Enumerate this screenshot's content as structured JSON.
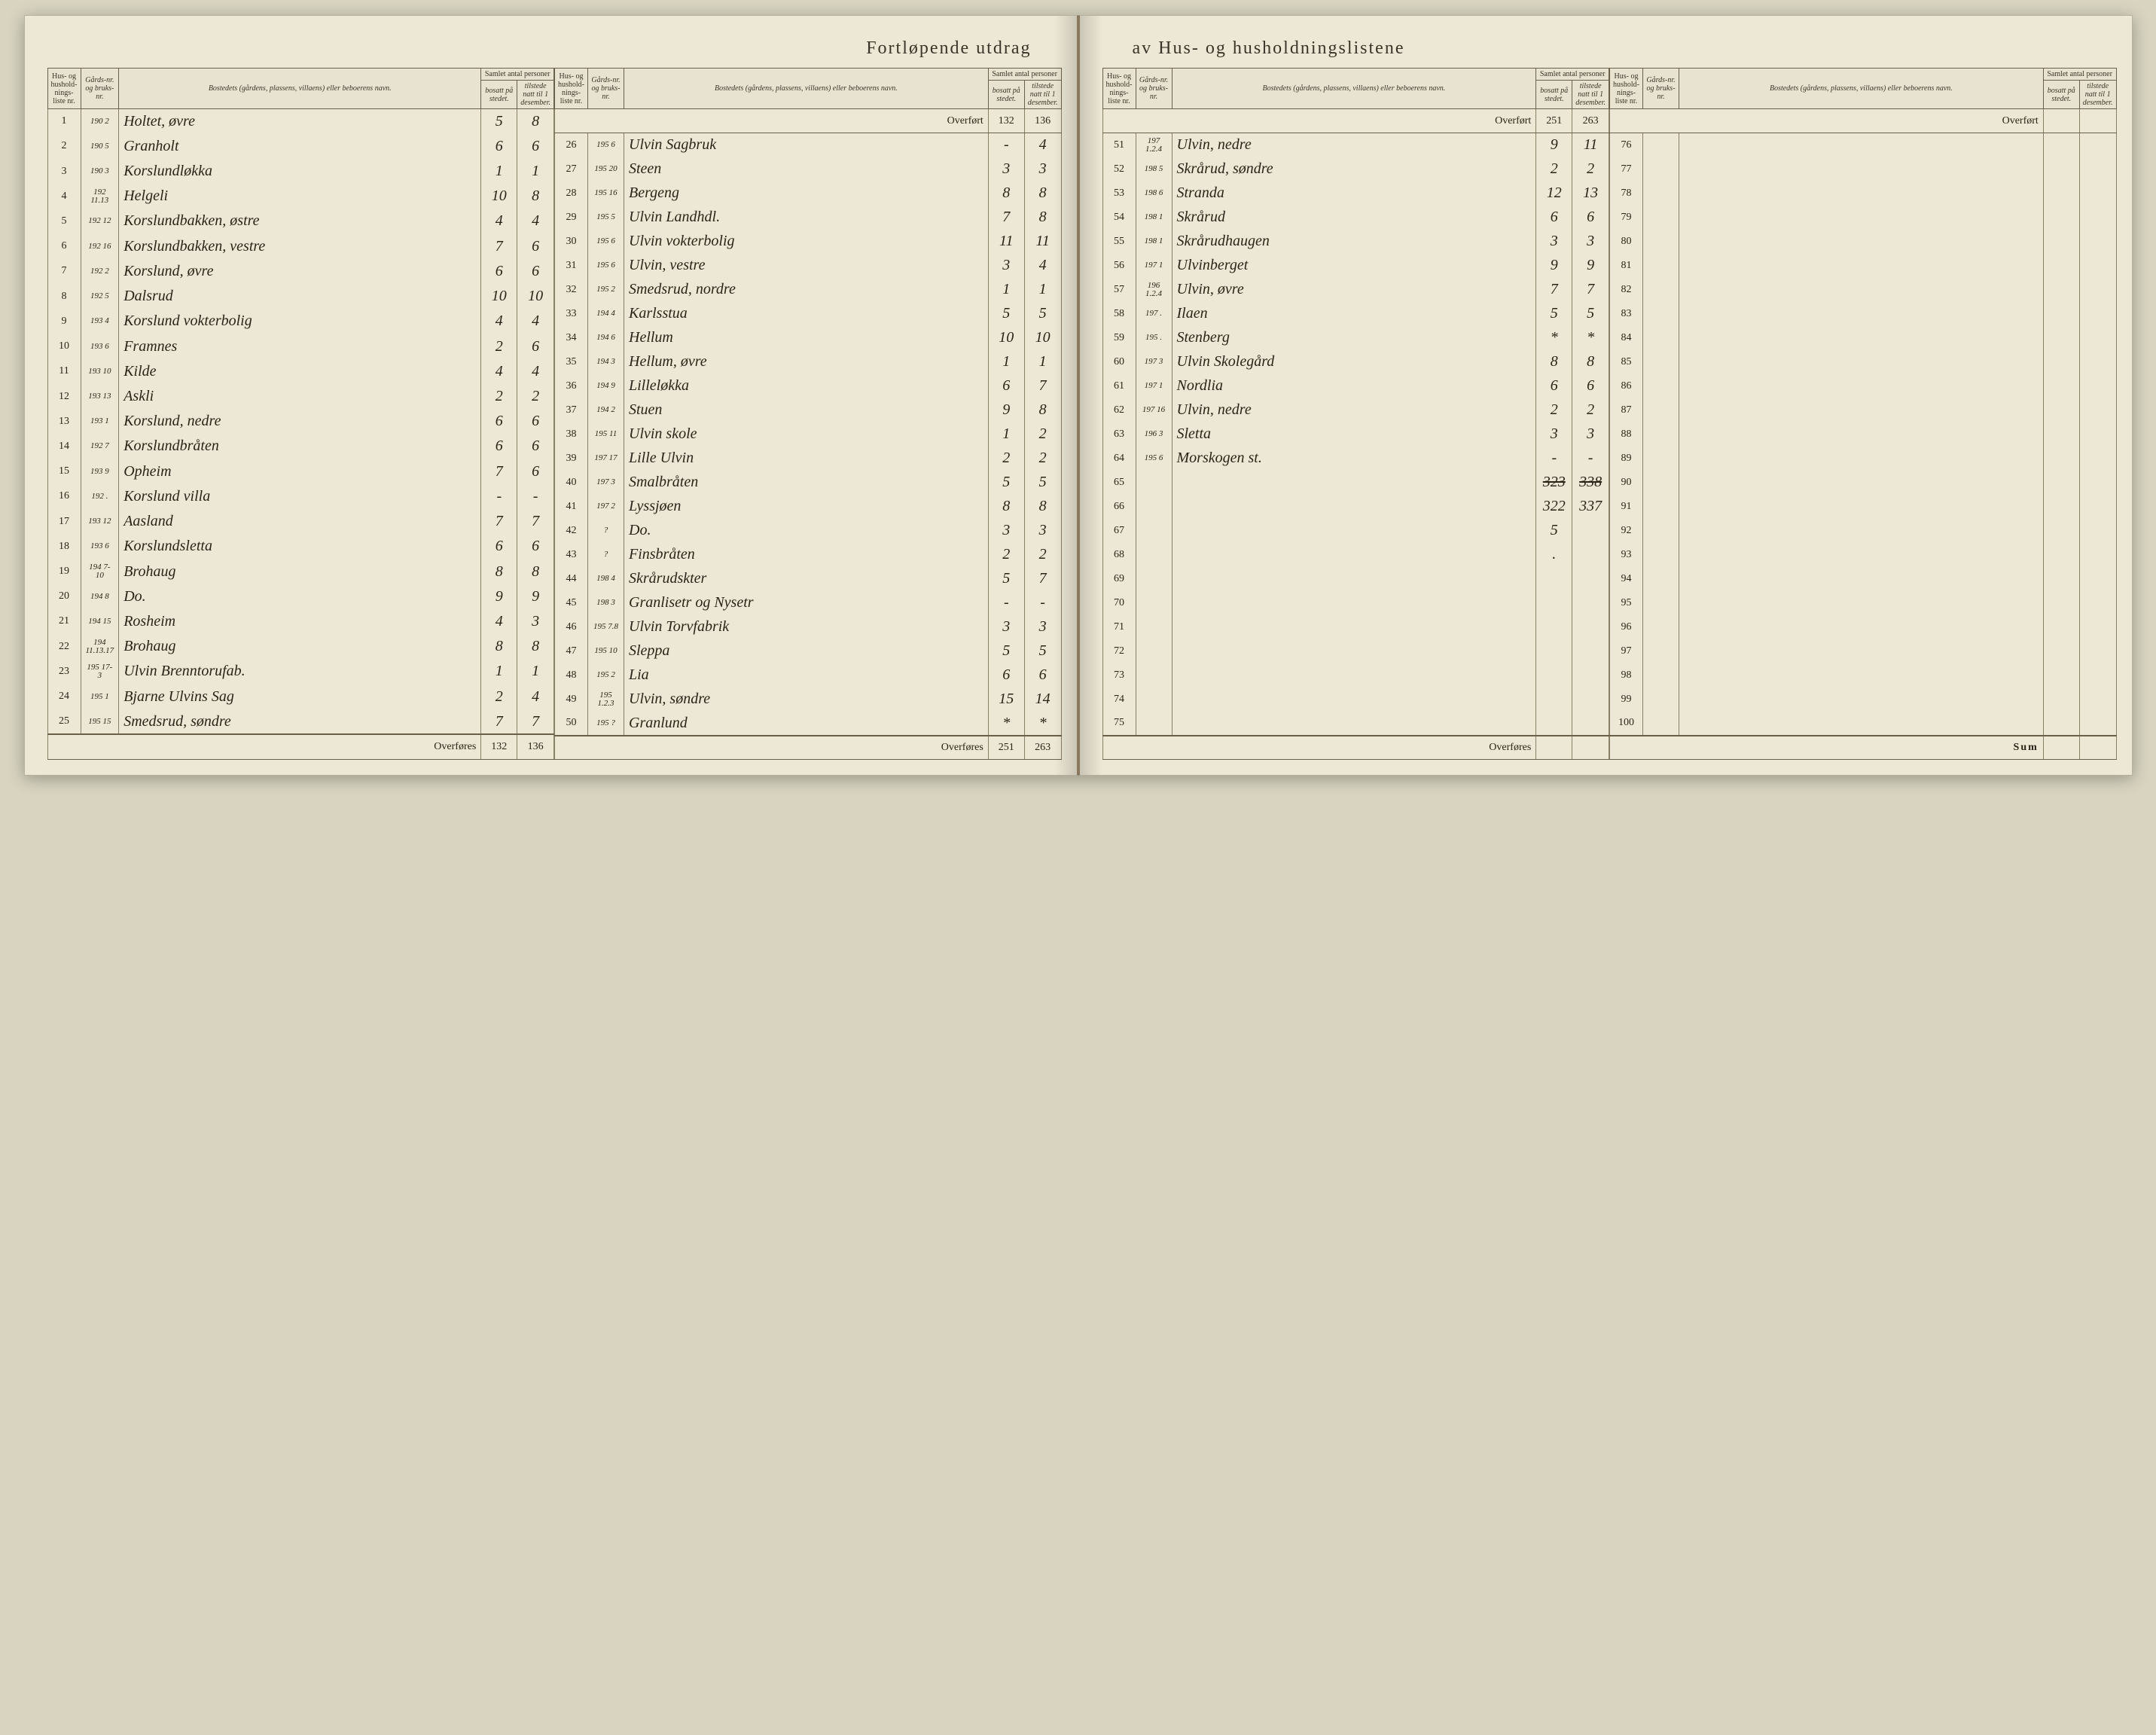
{
  "title_left": "Fortløpende utdrag",
  "title_right": "av Hus- og husholdningslistene",
  "headers": {
    "liste": "Hus- og hushold-nings-liste nr.",
    "gard": "Gårds-nr. og bruks-nr.",
    "name": "Bostedets (gårdens, plassens, villaens) eller beboerens navn.",
    "samlet": "Samlet antal personer",
    "bosatt": "bosatt på stedet.",
    "tilstede": "tilstede natt til 1 desember."
  },
  "overfort": "Overført",
  "overfores": "Overføres",
  "sum": "Sum",
  "carry_p2": {
    "bosatt": "132",
    "tilstede": "136"
  },
  "carry_p3": {
    "bosatt": "251",
    "tilstede": "263"
  },
  "totals_p1": {
    "bosatt": "132",
    "tilstede": "136"
  },
  "totals_p2": {
    "bosatt": "251",
    "tilstede": "263"
  },
  "totals_p3a": {
    "bosatt": "323",
    "tilstede": "338"
  },
  "totals_p3b": {
    "bosatt": "322",
    "tilstede": "337"
  },
  "panel1": [
    {
      "n": "1",
      "g": "190 2",
      "name": "Holtet, øvre",
      "b": "5",
      "t": "8"
    },
    {
      "n": "2",
      "g": "190 5",
      "name": "Granholt",
      "b": "6",
      "t": "6"
    },
    {
      "n": "3",
      "g": "190 3",
      "name": "Korslundløkka",
      "b": "1",
      "t": "1"
    },
    {
      "n": "4",
      "g": "192 11.13",
      "name": "Helgeli",
      "b": "10",
      "t": "8"
    },
    {
      "n": "5",
      "g": "192 12",
      "name": "Korslundbakken, østre",
      "b": "4",
      "t": "4"
    },
    {
      "n": "6",
      "g": "192 16",
      "name": "Korslundbakken, vestre",
      "b": "7",
      "t": "6"
    },
    {
      "n": "7",
      "g": "192 2",
      "name": "Korslund, øvre",
      "b": "6",
      "t": "6"
    },
    {
      "n": "8",
      "g": "192 5",
      "name": "Dalsrud",
      "b": "10",
      "t": "10"
    },
    {
      "n": "9",
      "g": "193 4",
      "name": "Korslund vokterbolig",
      "b": "4",
      "t": "4"
    },
    {
      "n": "10",
      "g": "193 6",
      "name": "Framnes",
      "b": "2",
      "t": "6"
    },
    {
      "n": "11",
      "g": "193 10",
      "name": "Kilde",
      "b": "4",
      "t": "4"
    },
    {
      "n": "12",
      "g": "193 13",
      "name": "Askli",
      "b": "2",
      "t": "2"
    },
    {
      "n": "13",
      "g": "193 1",
      "name": "Korslund, nedre",
      "b": "6",
      "t": "6"
    },
    {
      "n": "14",
      "g": "192 7",
      "name": "Korslundbråten",
      "b": "6",
      "t": "6"
    },
    {
      "n": "15",
      "g": "193 9",
      "name": "Opheim",
      "b": "7",
      "t": "6"
    },
    {
      "n": "16",
      "g": "192 .",
      "name": "Korslund villa",
      "b": "-",
      "t": "-"
    },
    {
      "n": "17",
      "g": "193 12",
      "name": "Aasland",
      "b": "7",
      "t": "7"
    },
    {
      "n": "18",
      "g": "193 6",
      "name": "Korslundsletta",
      "b": "6",
      "t": "6"
    },
    {
      "n": "19",
      "g": "194 7-10",
      "name": "Brohaug",
      "b": "8",
      "t": "8"
    },
    {
      "n": "20",
      "g": "194 8",
      "name": "Do.",
      "b": "9",
      "t": "9"
    },
    {
      "n": "21",
      "g": "194 15",
      "name": "Rosheim",
      "b": "4",
      "t": "3"
    },
    {
      "n": "22",
      "g": "194 11.13.17",
      "name": "Brohaug",
      "b": "8",
      "t": "8"
    },
    {
      "n": "23",
      "g": "195 17-3",
      "name": "Ulvin Brenntorufab.",
      "b": "1",
      "t": "1"
    },
    {
      "n": "24",
      "g": "195 1",
      "name": "Bjarne Ulvins Sag",
      "b": "2",
      "t": "4"
    },
    {
      "n": "25",
      "g": "195 15",
      "name": "Smedsrud, søndre",
      "b": "7",
      "t": "7"
    }
  ],
  "panel2": [
    {
      "n": "26",
      "g": "195 6",
      "name": "Ulvin Sagbruk",
      "b": "-",
      "t": "4"
    },
    {
      "n": "27",
      "g": "195 20",
      "name": "Steen",
      "b": "3",
      "t": "3"
    },
    {
      "n": "28",
      "g": "195 16",
      "name": "Bergeng",
      "b": "8",
      "t": "8"
    },
    {
      "n": "29",
      "g": "195 5",
      "name": "Ulvin Landhdl.",
      "b": "7",
      "t": "8"
    },
    {
      "n": "30",
      "g": "195 6",
      "name": "Ulvin vokterbolig",
      "b": "11",
      "t": "11"
    },
    {
      "n": "31",
      "g": "195 6",
      "name": "Ulvin, vestre",
      "b": "3",
      "t": "4"
    },
    {
      "n": "32",
      "g": "195 2",
      "name": "Smedsrud, nordre",
      "b": "1",
      "t": "1"
    },
    {
      "n": "33",
      "g": "194 4",
      "name": "Karlsstua",
      "b": "5",
      "t": "5"
    },
    {
      "n": "34",
      "g": "194 6",
      "name": "Hellum",
      "b": "10",
      "t": "10"
    },
    {
      "n": "35",
      "g": "194 3",
      "name": "Hellum, øvre",
      "b": "1",
      "t": "1"
    },
    {
      "n": "36",
      "g": "194 9",
      "name": "Lilleløkka",
      "b": "6",
      "t": "7"
    },
    {
      "n": "37",
      "g": "194 2",
      "name": "Stuen",
      "b": "9",
      "t": "8"
    },
    {
      "n": "38",
      "g": "195 11",
      "name": "Ulvin skole",
      "b": "1",
      "t": "2"
    },
    {
      "n": "39",
      "g": "197 17",
      "name": "Lille Ulvin",
      "b": "2",
      "t": "2"
    },
    {
      "n": "40",
      "g": "197 3",
      "name": "Smalbråten",
      "b": "5",
      "t": "5"
    },
    {
      "n": "41",
      "g": "197 2",
      "name": "Lyssjøen",
      "b": "8",
      "t": "8"
    },
    {
      "n": "42",
      "g": "?",
      "name": "Do.",
      "b": "3",
      "t": "3"
    },
    {
      "n": "43",
      "g": "?",
      "name": "Finsbråten",
      "b": "2",
      "t": "2"
    },
    {
      "n": "44",
      "g": "198 4",
      "name": "Skrårudskter",
      "b": "5",
      "t": "7"
    },
    {
      "n": "45",
      "g": "198 3",
      "name": "Granlisetr og Nysetr",
      "b": "-",
      "t": "-"
    },
    {
      "n": "46",
      "g": "195 7.8",
      "name": "Ulvin Torvfabrik",
      "b": "3",
      "t": "3"
    },
    {
      "n": "47",
      "g": "195 10",
      "name": "Sleppa",
      "b": "5",
      "t": "5"
    },
    {
      "n": "48",
      "g": "195 2",
      "name": "Lia",
      "b": "6",
      "t": "6"
    },
    {
      "n": "49",
      "g": "195 1.2.3",
      "name": "Ulvin, søndre",
      "b": "15",
      "t": "14"
    },
    {
      "n": "50",
      "g": "195 ?",
      "name": "Granlund",
      "b": "*",
      "t": "*"
    }
  ],
  "panel3": [
    {
      "n": "51",
      "g": "197 1.2.4",
      "name": "Ulvin, nedre",
      "b": "9",
      "t": "11"
    },
    {
      "n": "52",
      "g": "198 5",
      "name": "Skrårud, søndre",
      "b": "2",
      "t": "2"
    },
    {
      "n": "53",
      "g": "198 6",
      "name": "Stranda",
      "b": "12",
      "t": "13"
    },
    {
      "n": "54",
      "g": "198 1",
      "name": "Skrårud",
      "b": "6",
      "t": "6"
    },
    {
      "n": "55",
      "g": "198 1",
      "name": "Skrårudhaugen",
      "b": "3",
      "t": "3"
    },
    {
      "n": "56",
      "g": "197 1",
      "name": "Ulvinberget",
      "b": "9",
      "t": "9"
    },
    {
      "n": "57",
      "g": "196 1.2.4",
      "name": "Ulvin, øvre",
      "b": "7",
      "t": "7"
    },
    {
      "n": "58",
      "g": "197 .",
      "name": "Ilaen",
      "b": "5",
      "t": "5"
    },
    {
      "n": "59",
      "g": "195 .",
      "name": "Stenberg",
      "b": "*",
      "t": "*"
    },
    {
      "n": "60",
      "g": "197 3",
      "name": "Ulvin Skolegård",
      "b": "8",
      "t": "8"
    },
    {
      "n": "61",
      "g": "197 1",
      "name": "Nordlia",
      "b": "6",
      "t": "6"
    },
    {
      "n": "62",
      "g": "197 16",
      "name": "Ulvin, nedre",
      "b": "2",
      "t": "2"
    },
    {
      "n": "63",
      "g": "196 3",
      "name": "Sletta",
      "b": "3",
      "t": "3"
    },
    {
      "n": "64",
      "g": "195 6",
      "name": "Morskogen st.",
      "b": "-",
      "t": "-"
    },
    {
      "n": "65",
      "g": "",
      "name": "",
      "b": "",
      "t": ""
    },
    {
      "n": "66",
      "g": "",
      "name": "",
      "b": "",
      "t": ""
    },
    {
      "n": "67",
      "g": "",
      "name": "",
      "b": "5",
      "t": ""
    },
    {
      "n": "68",
      "g": "",
      "name": "",
      "b": ".",
      "t": ""
    },
    {
      "n": "69",
      "g": "",
      "name": "",
      "b": "",
      "t": ""
    },
    {
      "n": "70",
      "g": "",
      "name": "",
      "b": "",
      "t": ""
    },
    {
      "n": "71",
      "g": "",
      "name": "",
      "b": "",
      "t": ""
    },
    {
      "n": "72",
      "g": "",
      "name": "",
      "b": "",
      "t": ""
    },
    {
      "n": "73",
      "g": "",
      "name": "",
      "b": "",
      "t": ""
    },
    {
      "n": "74",
      "g": "",
      "name": "",
      "b": "",
      "t": ""
    },
    {
      "n": "75",
      "g": "",
      "name": "",
      "b": "",
      "t": ""
    }
  ],
  "panel4": [
    {
      "n": "76"
    },
    {
      "n": "77"
    },
    {
      "n": "78"
    },
    {
      "n": "79"
    },
    {
      "n": "80"
    },
    {
      "n": "81"
    },
    {
      "n": "82"
    },
    {
      "n": "83"
    },
    {
      "n": "84"
    },
    {
      "n": "85"
    },
    {
      "n": "86"
    },
    {
      "n": "87"
    },
    {
      "n": "88"
    },
    {
      "n": "89"
    },
    {
      "n": "90"
    },
    {
      "n": "91"
    },
    {
      "n": "92"
    },
    {
      "n": "93"
    },
    {
      "n": "94"
    },
    {
      "n": "95"
    },
    {
      "n": "96"
    },
    {
      "n": "97"
    },
    {
      "n": "98"
    },
    {
      "n": "99"
    },
    {
      "n": "100"
    }
  ]
}
